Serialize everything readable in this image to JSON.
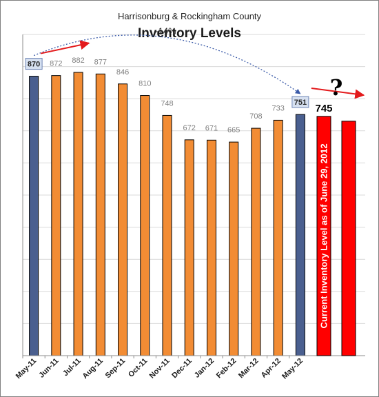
{
  "chart_data": {
    "type": "bar",
    "subtitle": "Harrisonburg & Rockingham County",
    "title": "Inventory Levels",
    "categories": [
      "May-11",
      "Jun-11",
      "Jul-11",
      "Aug-11",
      "Sep-11",
      "Oct-11",
      "Nov-11",
      "Dec-11",
      "Jan-12",
      "Feb-12",
      "Mar-12",
      "Apr-12",
      "May-12"
    ],
    "values": [
      870,
      872,
      882,
      877,
      846,
      810,
      748,
      672,
      671,
      665,
      708,
      733,
      751
    ],
    "highlighted": [
      "May-11",
      "May-12"
    ],
    "ylim": [
      0,
      1000
    ],
    "grid": true,
    "change_label": "-14%",
    "current": {
      "value": 745,
      "label_value": "745",
      "label": "Current Inventory Level as of June 29, 2012"
    },
    "projection_value": 730,
    "projection_mark": "?",
    "colors": {
      "bar": "#f28c34",
      "highlight": "#4a5f8f",
      "current": "#ff0000",
      "arrow": "#e31a1c",
      "dotted": "#3a5aa8",
      "grid": "#d9d9d9",
      "box_fill": "#d6e0f0",
      "box_stroke": "#6f86b6"
    }
  }
}
